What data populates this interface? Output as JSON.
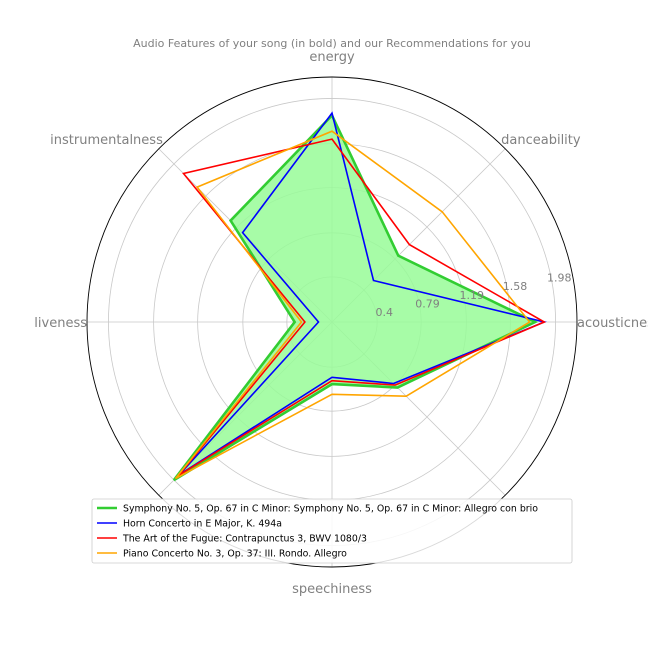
{
  "chart_data": {
    "type": "radar",
    "title": "Audio Features of your song (in bold) and our Recommendations for you",
    "axes": [
      "energy",
      "danceability",
      "acousticness",
      "",
      "speechiness",
      "",
      "liveness",
      "instrumentalness"
    ],
    "radial_ticks": [
      "0.4",
      "0.79",
      "1.19",
      "1.58",
      "1.98"
    ],
    "radial_tick_values": [
      0.4,
      0.79,
      1.19,
      1.58,
      1.98
    ],
    "rmax": 2.17,
    "grid": true,
    "legend_placement": "lower center",
    "series": [
      {
        "name": "Symphony No. 5, Op. 67 in C Minor: Symphony No. 5, Op. 67 in C Minor: Allegro con brio",
        "color": "#32cd32",
        "fill": "#98fb98",
        "bold": true,
        "values": [
          1.83,
          0.83,
          1.8,
          0.82,
          0.55,
          1.98,
          0.33,
          1.27
        ]
      },
      {
        "name": "Horn Concerto in E Major, K. 494a",
        "color": "#0000ff",
        "bold": false,
        "values": [
          1.85,
          0.52,
          1.88,
          0.77,
          0.49,
          1.91,
          0.12,
          1.12
        ]
      },
      {
        "name": "The Art of the Fugue: Contrapunctus 3, BWV 1080/3",
        "color": "#ff0000",
        "bold": false,
        "values": [
          1.62,
          0.97,
          1.88,
          0.79,
          0.52,
          1.92,
          0.24,
          1.86
        ]
      },
      {
        "name": "Piano Concerto No. 3, Op. 37: III. Rondo. Allegro",
        "color": "#ffa500",
        "bold": false,
        "values": [
          1.69,
          1.38,
          1.75,
          0.93,
          0.64,
          1.96,
          0.27,
          1.69
        ]
      }
    ]
  }
}
